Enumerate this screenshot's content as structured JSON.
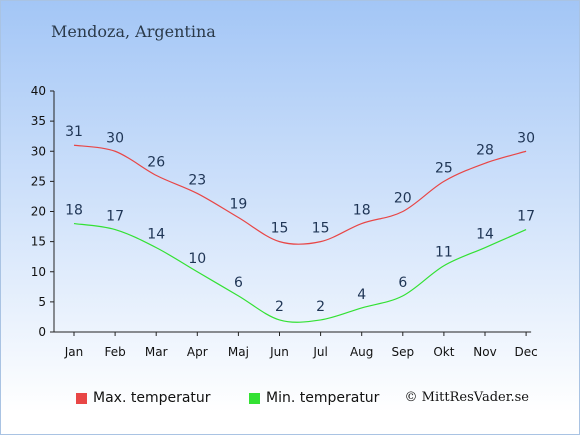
{
  "title": "Mendoza, Argentina",
  "legend": {
    "max_label": "Max. temperatur",
    "min_label": "Min. temperatur",
    "max_color": "#e84646",
    "min_color": "#33e133"
  },
  "copyright": "© MittResVader.se",
  "chart_data": {
    "type": "line",
    "title": "Mendoza, Argentina",
    "categories": [
      "Jan",
      "Feb",
      "Mar",
      "Apr",
      "Maj",
      "Jun",
      "Jul",
      "Aug",
      "Sep",
      "Okt",
      "Nov",
      "Dec"
    ],
    "series": [
      {
        "name": "Max. temperatur",
        "color": "#e84646",
        "values": [
          31,
          30,
          26,
          23,
          19,
          15,
          15,
          18,
          20,
          25,
          28,
          30
        ]
      },
      {
        "name": "Min. temperatur",
        "color": "#33e133",
        "values": [
          18,
          17,
          14,
          10,
          6,
          2,
          2,
          4,
          6,
          11,
          14,
          17
        ]
      }
    ],
    "ylim": [
      0,
      40
    ],
    "yticks": [
      0,
      5,
      10,
      15,
      20,
      25,
      30,
      35,
      40
    ],
    "grid": false,
    "legend_position": "bottom"
  }
}
